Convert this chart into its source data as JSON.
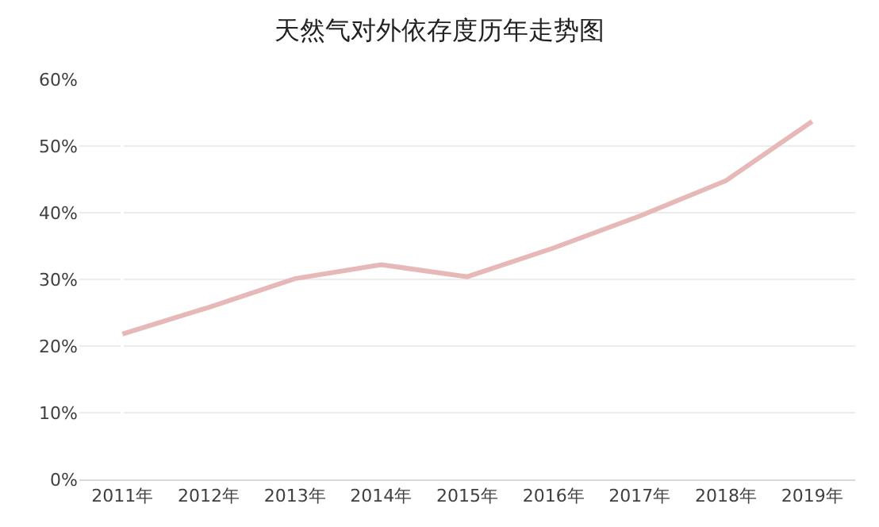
{
  "chart_data": {
    "type": "line",
    "title": "天然气对外依存度历年走势图",
    "categories": [
      "2011年",
      "2012年",
      "2013年",
      "2014年",
      "2015年",
      "2016年",
      "2017年",
      "2018年",
      "2019年"
    ],
    "series": [
      {
        "color": "#e6b8b7",
        "values": [
          21.8,
          25.8,
          30.1,
          32.2,
          30.4,
          34.7,
          39.5,
          44.8,
          53.7
        ]
      }
    ],
    "ylim": [
      0,
      60
    ],
    "yticks": [
      {
        "value": 0,
        "label": "0%"
      },
      {
        "value": 10,
        "label": "10%"
      },
      {
        "value": 20,
        "label": "20%"
      },
      {
        "value": 30,
        "label": "30%"
      },
      {
        "value": 40,
        "label": "40%"
      },
      {
        "value": 50,
        "label": "50%"
      },
      {
        "value": 60,
        "label": "60%"
      }
    ],
    "grid": "y",
    "legend": false,
    "marker": "none",
    "line_style": "solid"
  }
}
